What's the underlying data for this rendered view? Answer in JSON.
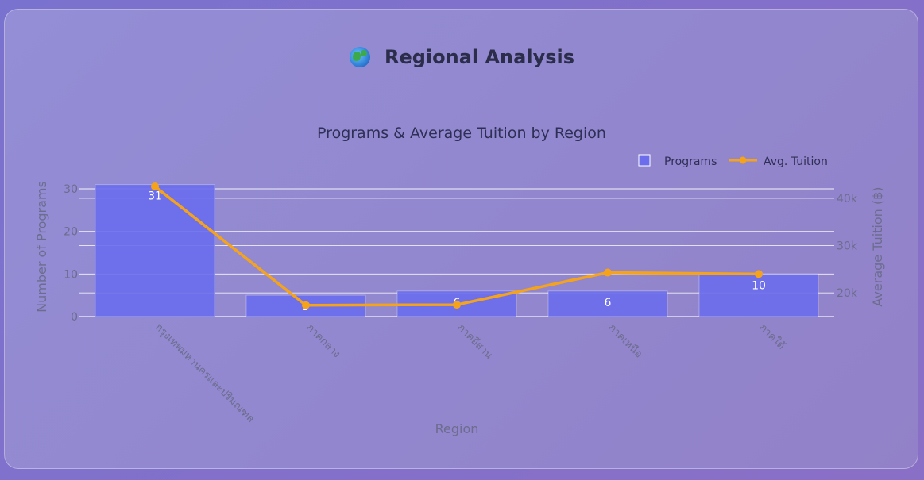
{
  "header": {
    "title": "Regional Analysis",
    "icon": "globe-icon"
  },
  "chart_data": {
    "type": "bar",
    "title": "Programs & Average Tuition by Region",
    "xlabel": "Region",
    "ylabel": "Number of Programs",
    "y2label": "Average Tuition (฿)",
    "categories": [
      "กรุงเทพมหานครและปริมณฑล",
      "ภาคกลาง",
      "ภาคอีสาน",
      "ภาคเหนือ",
      "ภาคใต้"
    ],
    "series": [
      {
        "name": "Programs",
        "type": "bar",
        "axis": "left",
        "values": [
          31,
          5,
          6,
          6,
          10
        ],
        "color": "#6b6ded"
      },
      {
        "name": "Avg. Tuition",
        "type": "line",
        "axis": "right",
        "values": [
          42500,
          17400,
          17500,
          24300,
          24000
        ],
        "color": "#f5a31a"
      }
    ],
    "ylim": [
      0,
      30
    ],
    "yticks": [
      "0",
      "10",
      "20",
      "30"
    ],
    "y2lim": [
      15000,
      42000
    ],
    "y2ticks": [
      "20k",
      "30k",
      "40k"
    ],
    "legend": "top-right",
    "grid": true
  }
}
